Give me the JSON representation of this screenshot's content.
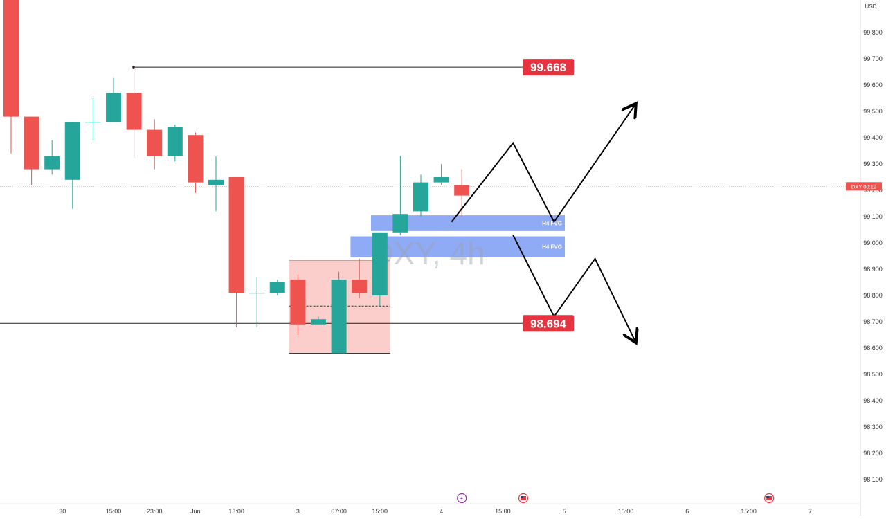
{
  "chart_data": {
    "type": "candlestick",
    "symbol": "DXY",
    "interval": "4h",
    "watermark": "DXY, 4h",
    "currency": "USD",
    "colors": {
      "up": "#26a69a",
      "down": "#ef5350",
      "zone_fill": "#f8a5a0",
      "fvg_fill": "#7b9cf5",
      "label_bg": "#e5333f",
      "current_badge": "#ef5350"
    },
    "y_axis": {
      "min": 98.05,
      "max": 99.95,
      "ticks": [
        "99.800",
        "99.700",
        "99.600",
        "99.500",
        "99.400",
        "99.300",
        "99.200",
        "99.100",
        "99.000",
        "98.900",
        "98.800",
        "98.700",
        "98.600",
        "98.500",
        "98.400",
        "98.300",
        "98.200",
        "98.100"
      ]
    },
    "x_axis": {
      "ticks": [
        "30",
        "15:00",
        "23:00",
        "Jun",
        "13:00",
        "3",
        "07:00",
        "15:00",
        "4",
        "15:00",
        "5",
        "15:00",
        "6",
        "15:00",
        "7"
      ]
    },
    "candles": [
      {
        "o": 99.95,
        "h": 99.95,
        "l": 99.34,
        "c": 99.48
      },
      {
        "o": 99.48,
        "h": 99.48,
        "l": 99.22,
        "c": 99.28
      },
      {
        "o": 99.28,
        "h": 99.39,
        "l": 99.26,
        "c": 99.33
      },
      {
        "o": 99.24,
        "h": 99.46,
        "l": 99.13,
        "c": 99.46
      },
      {
        "o": 99.46,
        "h": 99.55,
        "l": 99.39,
        "c": 99.46
      },
      {
        "o": 99.46,
        "h": 99.63,
        "l": 99.46,
        "c": 99.57
      },
      {
        "o": 99.57,
        "h": 99.668,
        "l": 99.32,
        "c": 99.43
      },
      {
        "o": 99.43,
        "h": 99.47,
        "l": 99.28,
        "c": 99.33
      },
      {
        "o": 99.33,
        "h": 99.45,
        "l": 99.31,
        "c": 99.44
      },
      {
        "o": 99.41,
        "h": 99.42,
        "l": 99.19,
        "c": 99.23
      },
      {
        "o": 99.22,
        "h": 99.33,
        "l": 99.12,
        "c": 99.24
      },
      {
        "o": 99.25,
        "h": 99.25,
        "l": 98.68,
        "c": 98.81
      },
      {
        "o": 98.81,
        "h": 98.87,
        "l": 98.68,
        "c": 98.81
      },
      {
        "o": 98.81,
        "h": 98.86,
        "l": 98.8,
        "c": 98.85
      },
      {
        "o": 98.86,
        "h": 98.88,
        "l": 98.65,
        "c": 98.69
      },
      {
        "o": 98.69,
        "h": 98.72,
        "l": 98.69,
        "c": 98.71
      },
      {
        "o": 98.58,
        "h": 98.89,
        "l": 98.58,
        "c": 98.86
      },
      {
        "o": 98.86,
        "h": 98.94,
        "l": 98.79,
        "c": 98.81
      },
      {
        "o": 98.8,
        "h": 99.04,
        "l": 98.76,
        "c": 99.04
      },
      {
        "o": 99.04,
        "h": 99.33,
        "l": 99.03,
        "c": 99.11
      },
      {
        "o": 99.12,
        "h": 99.26,
        "l": 99.1,
        "c": 99.23
      },
      {
        "o": 99.23,
        "h": 99.3,
        "l": 99.22,
        "c": 99.25
      },
      {
        "o": 99.22,
        "h": 99.28,
        "l": 99.1,
        "c": 99.18
      }
    ],
    "price_levels": [
      {
        "label": "99.668",
        "value": 99.668
      },
      {
        "label": "98.694",
        "value": 98.694
      }
    ],
    "current_price": {
      "symbol": "DXY",
      "countdown": "00:19",
      "value": 99.215
    },
    "zones": [
      {
        "type": "demand-box",
        "from_candle": 14,
        "to_candle": 18,
        "top": 98.935,
        "bottom": 98.58,
        "mid": 98.76
      }
    ],
    "fvgs": [
      {
        "label": "H4 FVG",
        "from_candle": 18,
        "top": 99.105,
        "bottom": 99.045
      },
      {
        "label": "H4 FVG",
        "from_candle": 17,
        "top": 99.025,
        "bottom": 98.945
      }
    ],
    "projections": [
      {
        "name": "bullish-path",
        "points": [
          [
            21.5,
            99.08
          ],
          [
            24.5,
            99.38
          ],
          [
            26.5,
            99.08
          ],
          [
            30.5,
            99.53
          ]
        ]
      },
      {
        "name": "bearish-path",
        "points": [
          [
            24.5,
            99.03
          ],
          [
            26.5,
            98.72
          ],
          [
            28.5,
            98.94
          ],
          [
            30.5,
            98.62
          ]
        ]
      }
    ],
    "event_markers": [
      {
        "icon": "lightning-icon",
        "candle": 22
      },
      {
        "icon": "us-flag-icon",
        "candle": 25
      },
      {
        "icon": "us-flag-icon",
        "candle": 37
      }
    ]
  }
}
